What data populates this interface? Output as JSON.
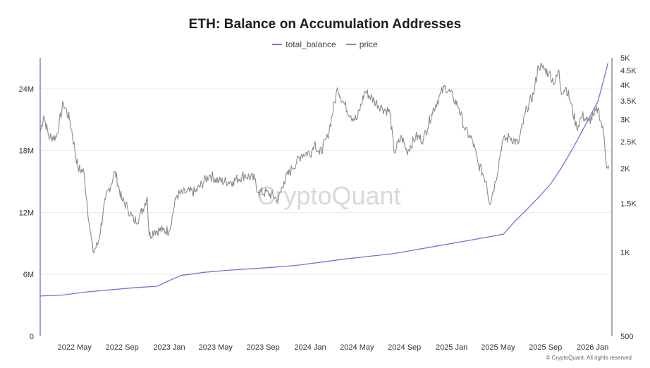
{
  "title": "ETH: Balance on Accumulation Addresses",
  "footer": "© CryptoQuant. All rights reserved",
  "watermark": "CryptoQuant",
  "colors": {
    "total_balance": "#7b6fd6",
    "price": "#8a8a8a",
    "axis": "#6a5fc4",
    "grid": "#ececec"
  },
  "chart_data": {
    "type": "line",
    "title": "ETH: Balance on Accumulation Addresses",
    "legend": {
      "placement": "top-center",
      "entries": [
        "total_balance",
        "price"
      ]
    },
    "grid": true,
    "x_axis": {
      "range": [
        "2022-02-01",
        "2026-02-20"
      ],
      "tick_labels": [
        "2022 May",
        "2022 Sep",
        "2023 Jan",
        "2023 May",
        "2023 Sep",
        "2024 Jan",
        "2024 May",
        "2024 Sep",
        "2025 Jan",
        "2025 May",
        "2025 Sep",
        "2026 Jan"
      ],
      "tick_dates": [
        "2022-05-01",
        "2022-09-01",
        "2023-01-01",
        "2023-05-01",
        "2023-09-01",
        "2024-01-01",
        "2024-05-01",
        "2024-09-01",
        "2025-01-01",
        "2025-05-01",
        "2025-09-01",
        "2026-01-01"
      ]
    },
    "y_left": {
      "range": [
        0,
        27000000
      ],
      "ticks": [
        0,
        6000000,
        12000000,
        18000000,
        24000000
      ],
      "tick_labels": [
        "0",
        "6M",
        "12M",
        "18M",
        "24M"
      ]
    },
    "y_right": {
      "scale": "log",
      "range": [
        500,
        5000
      ],
      "ticks": [
        500,
        1000,
        1500,
        2000,
        2500,
        3000,
        3500,
        4000,
        4500,
        5000
      ],
      "tick_labels": [
        "500",
        "1K",
        "1.5K",
        "2K",
        "2.5K",
        "3K",
        "3.5K",
        "4K",
        "4.5K",
        "5K"
      ]
    },
    "series": [
      {
        "name": "total_balance",
        "axis": "left",
        "x": [
          "2022-02-01",
          "2022-04-01",
          "2022-06-01",
          "2022-08-01",
          "2022-10-01",
          "2022-12-01",
          "2023-01-01",
          "2023-02-01",
          "2023-04-01",
          "2023-06-01",
          "2023-08-01",
          "2023-10-01",
          "2023-12-01",
          "2024-02-01",
          "2024-04-01",
          "2024-06-01",
          "2024-08-01",
          "2024-10-01",
          "2024-12-01",
          "2025-02-01",
          "2025-04-01",
          "2025-05-15",
          "2025-06-15",
          "2025-07-15",
          "2025-08-15",
          "2025-09-15",
          "2025-10-15",
          "2025-11-15",
          "2025-12-15",
          "2026-01-15",
          "2026-02-10"
        ],
        "y": [
          3900000,
          4000000,
          4300000,
          4500000,
          4700000,
          4850000,
          5400000,
          5900000,
          6200000,
          6400000,
          6550000,
          6700000,
          6900000,
          7200000,
          7500000,
          7750000,
          8000000,
          8400000,
          8800000,
          9200000,
          9600000,
          9900000,
          11200000,
          12300000,
          13500000,
          14800000,
          16500000,
          18500000,
          20600000,
          22800000,
          26500000
        ]
      },
      {
        "name": "price",
        "axis": "right",
        "x": [
          "2022-02-01",
          "2022-02-10",
          "2022-02-24",
          "2022-03-15",
          "2022-04-02",
          "2022-04-20",
          "2022-05-10",
          "2022-05-25",
          "2022-06-10",
          "2022-06-18",
          "2022-07-01",
          "2022-07-20",
          "2022-08-14",
          "2022-08-31",
          "2022-09-15",
          "2022-10-01",
          "2022-10-15",
          "2022-11-05",
          "2022-11-10",
          "2022-11-25",
          "2022-12-15",
          "2023-01-01",
          "2023-01-20",
          "2023-02-15",
          "2023-03-10",
          "2023-04-15",
          "2023-05-10",
          "2023-06-15",
          "2023-07-15",
          "2023-08-10",
          "2023-08-20",
          "2023-09-15",
          "2023-10-10",
          "2023-10-25",
          "2023-11-15",
          "2023-12-10",
          "2024-01-05",
          "2024-01-12",
          "2024-01-25",
          "2024-02-15",
          "2024-03-12",
          "2024-03-25",
          "2024-04-15",
          "2024-05-01",
          "2024-05-22",
          "2024-06-15",
          "2024-07-05",
          "2024-07-25",
          "2024-08-05",
          "2024-08-25",
          "2024-09-07",
          "2024-09-30",
          "2024-10-20",
          "2024-11-10",
          "2024-12-01",
          "2024-12-16",
          "2025-01-05",
          "2025-01-20",
          "2025-02-05",
          "2025-02-25",
          "2025-03-10",
          "2025-04-01",
          "2025-04-09",
          "2025-04-25",
          "2025-05-12",
          "2025-06-01",
          "2025-06-22",
          "2025-07-15",
          "2025-08-01",
          "2025-08-14",
          "2025-08-24",
          "2025-09-10",
          "2025-09-25",
          "2025-10-06",
          "2025-10-11",
          "2025-10-25",
          "2025-11-05",
          "2025-11-21",
          "2025-12-05",
          "2025-12-20",
          "2026-01-05",
          "2026-01-15",
          "2026-01-31",
          "2026-02-05",
          "2026-02-12"
        ],
        "y": [
          2700,
          3100,
          2600,
          2600,
          3450,
          2950,
          2000,
          1950,
          1200,
          1000,
          1080,
          1550,
          1950,
          1550,
          1450,
          1300,
          1330,
          1580,
          1150,
          1200,
          1200,
          1200,
          1600,
          1650,
          1650,
          1900,
          1800,
          1800,
          1900,
          1830,
          1650,
          1630,
          1550,
          1800,
          2000,
          2250,
          2300,
          2500,
          2250,
          2600,
          3900,
          3500,
          3100,
          3000,
          3800,
          3500,
          3300,
          3200,
          2300,
          2600,
          2300,
          2600,
          2550,
          3150,
          3650,
          3950,
          3600,
          3300,
          2750,
          2500,
          2100,
          1800,
          1500,
          1800,
          2500,
          2600,
          2450,
          3300,
          3700,
          4700,
          4600,
          4400,
          4050,
          4500,
          3800,
          3900,
          3450,
          2800,
          3100,
          2950,
          3100,
          3300,
          2600,
          2100,
          2000
        ]
      }
    ]
  }
}
